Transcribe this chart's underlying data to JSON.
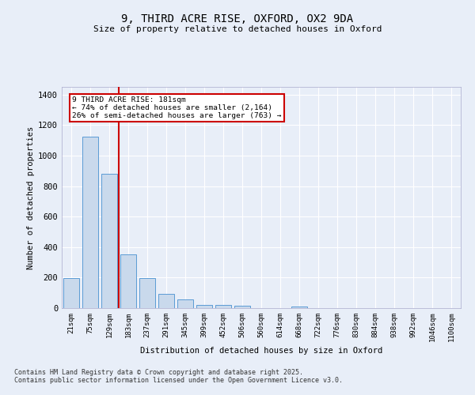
{
  "title": "9, THIRD ACRE RISE, OXFORD, OX2 9DA",
  "subtitle": "Size of property relative to detached houses in Oxford",
  "xlabel": "Distribution of detached houses by size in Oxford",
  "ylabel": "Number of detached properties",
  "bar_color": "#c9d9ec",
  "bar_edge_color": "#5b9bd5",
  "background_color": "#e8eef8",
  "grid_color": "#ffffff",
  "annotation_line1": "9 THIRD ACRE RISE: 181sqm",
  "annotation_line2": "← 74% of detached houses are smaller (2,164)",
  "annotation_line3": "26% of semi-detached houses are larger (763) →",
  "property_line_color": "#cc0000",
  "property_line_index": 2.5,
  "categories": [
    "21sqm",
    "75sqm",
    "129sqm",
    "183sqm",
    "237sqm",
    "291sqm",
    "345sqm",
    "399sqm",
    "452sqm",
    "506sqm",
    "560sqm",
    "614sqm",
    "668sqm",
    "722sqm",
    "776sqm",
    "830sqm",
    "884sqm",
    "938sqm",
    "992sqm",
    "1046sqm",
    "1100sqm"
  ],
  "values": [
    195,
    1125,
    880,
    350,
    195,
    92,
    57,
    23,
    20,
    18,
    0,
    0,
    12,
    0,
    0,
    0,
    0,
    0,
    0,
    0,
    0
  ],
  "ylim": [
    0,
    1450
  ],
  "yticks": [
    0,
    200,
    400,
    600,
    800,
    1000,
    1200,
    1400
  ],
  "footer_line1": "Contains HM Land Registry data © Crown copyright and database right 2025.",
  "footer_line2": "Contains public sector information licensed under the Open Government Licence v3.0.",
  "annotation_box_edgecolor": "#cc0000",
  "figsize": [
    6.0,
    5.0
  ],
  "dpi": 100
}
